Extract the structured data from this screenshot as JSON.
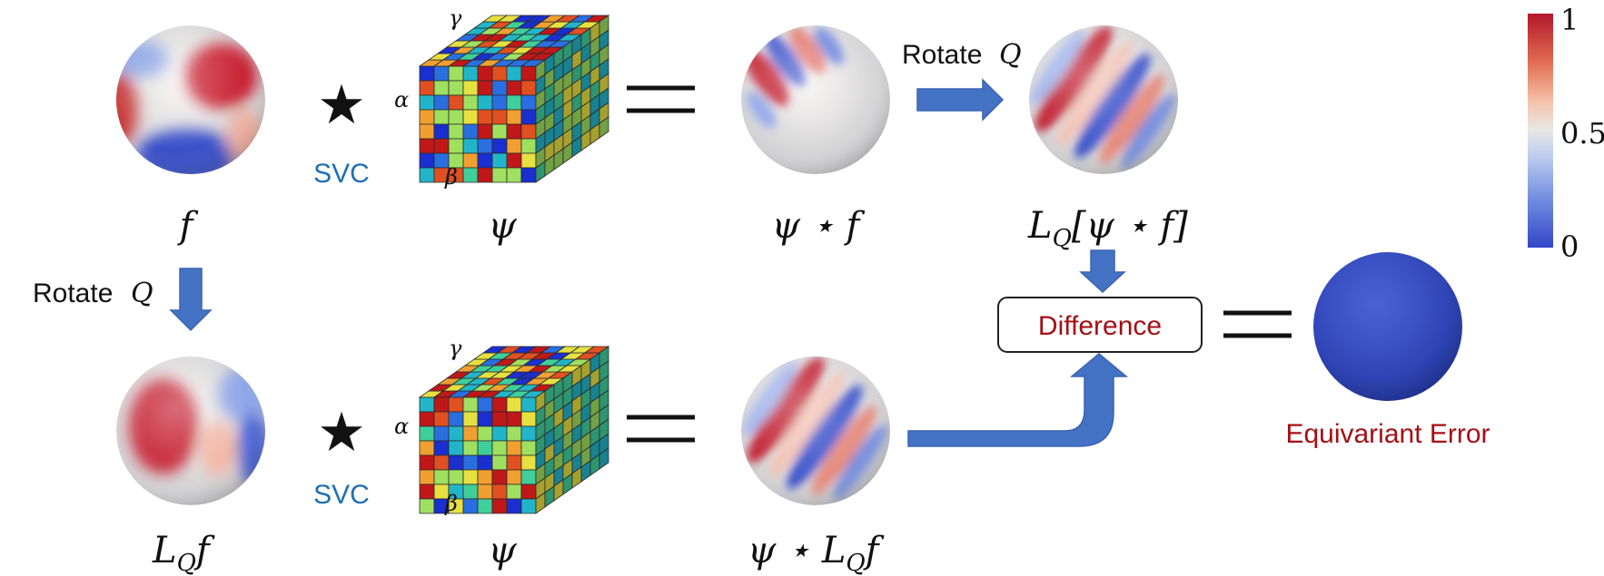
{
  "labels": {
    "f": "f",
    "psi_top": "ψ",
    "psi_bottom": "ψ",
    "psi_star_f": "ψ ⋆ f",
    "lq_psi_star_f": "L",
    "lq_sub": "Q",
    "lq_bracket": "[ψ ⋆ f]",
    "lq_f": "L",
    "lq_f_sub": "Q",
    "lq_f_tail": "f",
    "psi_star_lq_f": "ψ ⋆ L",
    "psi_star_lq_f_sub": "Q",
    "psi_star_lq_f_tail": "f"
  },
  "operators": {
    "star_symbol": "★",
    "svc_top": "SVC",
    "svc_bottom": "SVC",
    "equals": "="
  },
  "kernel_axes": {
    "top": {
      "gamma": "γ",
      "alpha": "α",
      "beta": "β"
    },
    "bottom": {
      "gamma": "γ",
      "alpha": "α",
      "beta": "β"
    }
  },
  "arrows": {
    "rotate_top_text": "Rotate",
    "rotate_top_q": "Q",
    "rotate_left_text": "Rotate",
    "rotate_left_q": "Q"
  },
  "difference_box": {
    "label": "Difference"
  },
  "result": {
    "label": "Equivariant Error"
  },
  "colorbar": {
    "ticks": [
      "1",
      "0.5",
      "0"
    ],
    "values": [
      1,
      0.5,
      0
    ],
    "colors": [
      "#b2182b",
      "#ef8a62",
      "#fddbc7",
      "#e6e6e6",
      "#d1e5f0",
      "#67a9cf",
      "#3a4fd1"
    ]
  },
  "colors": {
    "arrow": "#4472c4",
    "svc": "#1f6fb2",
    "difference_text": "#a50f15",
    "error_text": "#a50f15",
    "error_sphere": "#2e45b8"
  }
}
